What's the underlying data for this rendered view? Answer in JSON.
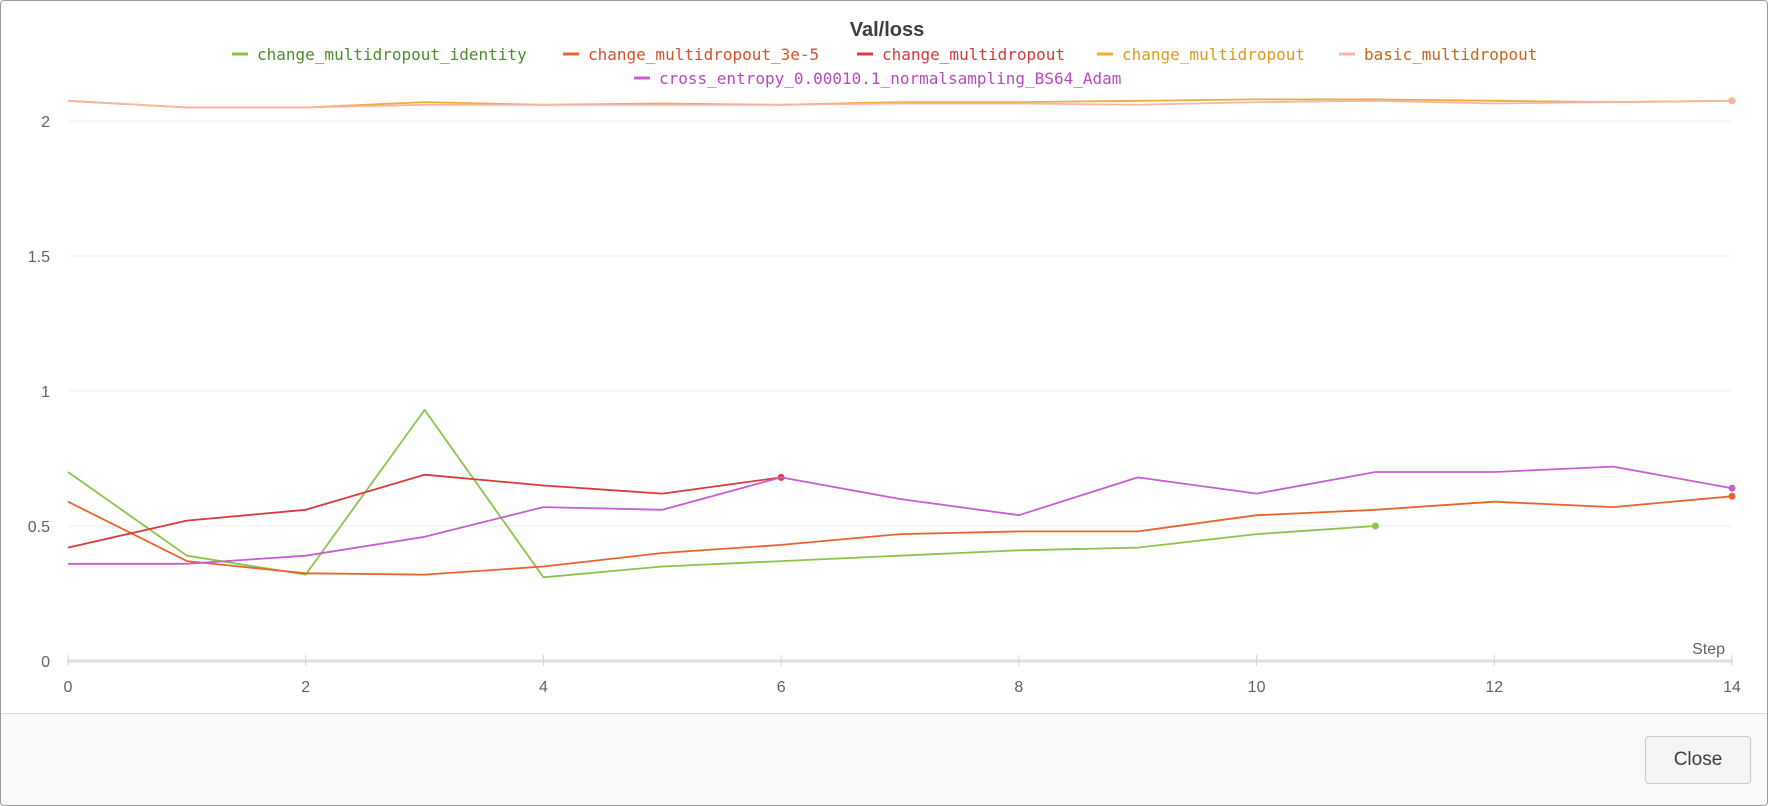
{
  "chart_data": {
    "type": "line",
    "title": "Val/loss",
    "xlabel": "Step",
    "ylabel": "",
    "xlim": [
      0,
      14
    ],
    "ylim": [
      0,
      2.2
    ],
    "x_ticks": [
      0,
      2,
      4,
      6,
      8,
      10,
      12,
      14
    ],
    "y_ticks": [
      0,
      0.5,
      1,
      1.5,
      2
    ],
    "y_tick_labels": [
      "0",
      "0.5",
      "1",
      "1.5",
      "2"
    ],
    "grid": "horizontal",
    "legend_position": "top",
    "series": [
      {
        "name": "change_multidropout_identity",
        "color": "#8bc34a",
        "label_color": "#4e8a2e",
        "x": [
          0,
          1,
          2,
          3,
          4,
          5,
          6,
          7,
          8,
          9,
          10,
          11
        ],
        "y": [
          0.7,
          0.39,
          0.32,
          0.93,
          0.31,
          0.35,
          0.37,
          0.39,
          0.41,
          0.42,
          0.47,
          0.5
        ]
      },
      {
        "name": "change_multidropout_3e-5",
        "color": "#e8642c",
        "label_color": "#d4522a",
        "x": [
          0,
          1,
          2,
          3,
          4,
          5,
          6,
          7,
          8,
          9,
          10,
          11,
          12,
          13,
          14
        ],
        "y": [
          0.59,
          0.37,
          0.325,
          0.32,
          0.35,
          0.4,
          0.43,
          0.47,
          0.48,
          0.48,
          0.54,
          0.56,
          0.59,
          0.57,
          0.61
        ]
      },
      {
        "name": "change_multidropout",
        "color": "#d93a3a",
        "label_color": "#d13b3b",
        "x": [
          0,
          1,
          2,
          3,
          4,
          5,
          6
        ],
        "y": [
          0.42,
          0.52,
          0.56,
          0.69,
          0.65,
          0.62,
          0.68
        ]
      },
      {
        "name": "change_multidropout",
        "color": "#f2ab3a",
        "label_color": "#d99a1e",
        "x": [
          0,
          1,
          2,
          3,
          4,
          5,
          6,
          7,
          8,
          9,
          10,
          11,
          12,
          13,
          14
        ],
        "y": [
          2.075,
          2.05,
          2.05,
          2.07,
          2.06,
          2.065,
          2.06,
          2.07,
          2.07,
          2.075,
          2.08,
          2.08,
          2.075,
          2.07,
          2.075
        ]
      },
      {
        "name": "basic_multidropout",
        "color": "#f4b8a0",
        "label_color": "#c9641a",
        "x": [
          0,
          1,
          2,
          3,
          4,
          5,
          6,
          7,
          8,
          9,
          10,
          11,
          12,
          13,
          14
        ],
        "y": [
          2.075,
          2.05,
          2.05,
          2.06,
          2.06,
          2.06,
          2.06,
          2.065,
          2.065,
          2.06,
          2.07,
          2.075,
          2.065,
          2.07,
          2.075
        ]
      },
      {
        "name": "cross_entropy_0.00010.1_normalsampling_BS64_Adam",
        "color": "#c65fcf",
        "label_color": "#b44bbd",
        "x": [
          0,
          1,
          2,
          3,
          4,
          5,
          6,
          7,
          8,
          9,
          10,
          11,
          12,
          13,
          14
        ],
        "y": [
          0.36,
          0.36,
          0.39,
          0.46,
          0.57,
          0.56,
          0.68,
          0.6,
          0.54,
          0.68,
          0.62,
          0.7,
          0.7,
          0.72,
          0.64
        ]
      }
    ]
  },
  "footer": {
    "close_label": "Close"
  }
}
